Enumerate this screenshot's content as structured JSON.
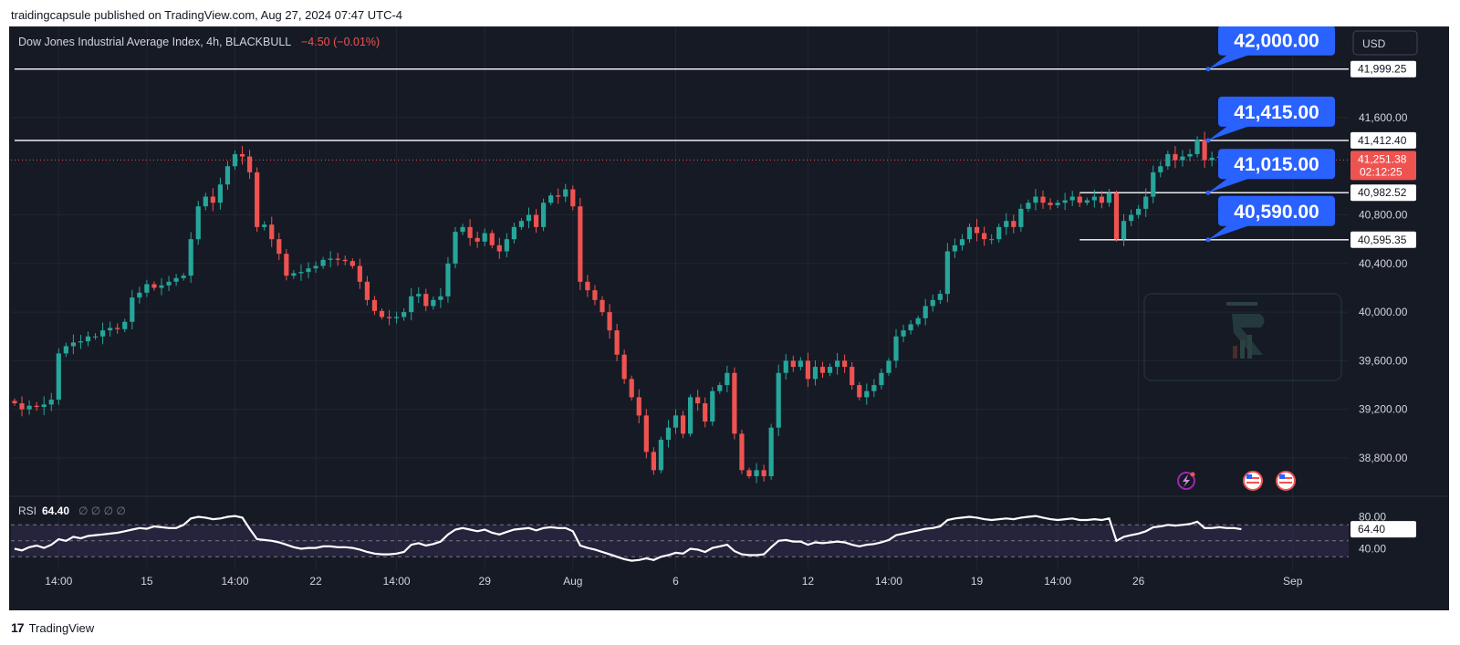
{
  "header": {
    "text": "traidingcapsule published on TradingView.com, Aug 27, 2024 07:47 UTC-4"
  },
  "legend": {
    "symbol": "Dow Jones Industrial Average Index, 4h, BLACKBULL",
    "change": "−4.50 (−0.01%)"
  },
  "currency_button": "USD",
  "footer": {
    "logo": "17",
    "brand": "TradingView"
  },
  "colors": {
    "up": "#26a69a",
    "down": "#ef5350",
    "callout": "#2962ff",
    "rsi_line": "#ffffff",
    "rsi_band": "#3a2e5a",
    "panel": "#161a25"
  },
  "icons": [
    "lightning-icon",
    "us-flag-icon",
    "us-flag-icon"
  ],
  "chart_data": {
    "type": "candlestick",
    "interval": "4h",
    "ylim": [
      38500,
      42350
    ],
    "y_ticks": [
      "41,600.00",
      "40,800.00",
      "40,400.00",
      "40,000.00",
      "39,600.00",
      "39,200.00",
      "38,800.00"
    ],
    "y_tick_values": [
      41600,
      40800,
      40400,
      40000,
      39600,
      39200,
      38800
    ],
    "x_ticks": [
      {
        "label": "14:00",
        "i": 6
      },
      {
        "label": "15",
        "i": 18
      },
      {
        "label": "14:00",
        "i": 30
      },
      {
        "label": "22",
        "i": 41
      },
      {
        "label": "14:00",
        "i": 52
      },
      {
        "label": "29",
        "i": 64
      },
      {
        "label": "Aug",
        "i": 76
      },
      {
        "label": "6",
        "i": 90
      },
      {
        "label": "12",
        "i": 108
      },
      {
        "label": "14:00",
        "i": 119
      },
      {
        "label": "19",
        "i": 131
      },
      {
        "label": "14:00",
        "i": 142
      },
      {
        "label": "26",
        "i": 153
      },
      {
        "label": "Sep",
        "i": 174
      }
    ],
    "levels": [
      {
        "value": 41999.25,
        "price_label": "41,999.25",
        "callout": "42,000.00",
        "start_i": 0
      },
      {
        "value": 41412.4,
        "price_label": "41,412.40",
        "callout": "41,415.00",
        "start_i": 0
      },
      {
        "value": 40982.52,
        "price_label": "40,982.52",
        "callout": "41,015.00",
        "start_i": 145
      },
      {
        "value": 40595.35,
        "price_label": "40,595.35",
        "callout": "40,590.00",
        "start_i": 145
      }
    ],
    "current_price": {
      "value": 41251.38,
      "label": "41,251.38",
      "countdown": "02:12:25"
    },
    "closes": [
      39250,
      39200,
      39230,
      39220,
      39240,
      39280,
      39660,
      39720,
      39750,
      39760,
      39800,
      39800,
      39850,
      39870,
      39860,
      39920,
      40120,
      40160,
      40230,
      40200,
      40220,
      40250,
      40280,
      40300,
      40600,
      40870,
      40950,
      40900,
      41050,
      41200,
      41300,
      41280,
      41150,
      40700,
      40720,
      40600,
      40480,
      40300,
      40320,
      40330,
      40360,
      40380,
      40430,
      40440,
      40430,
      40420,
      40380,
      40250,
      40100,
      40010,
      39960,
      39950,
      39960,
      40000,
      40130,
      40150,
      40050,
      40100,
      40130,
      40400,
      40660,
      40700,
      40610,
      40580,
      40650,
      40550,
      40500,
      40600,
      40700,
      40750,
      40800,
      40700,
      40900,
      40960,
      40950,
      41010,
      40870,
      40250,
      40180,
      40100,
      40000,
      39850,
      39650,
      39450,
      39300,
      39150,
      38850,
      38700,
      38950,
      39050,
      39150,
      39000,
      39300,
      39250,
      39100,
      39350,
      39400,
      39500,
      39000,
      38700,
      38650,
      38700,
      38650,
      39050,
      39500,
      39600,
      39550,
      39600,
      39450,
      39550,
      39500,
      39550,
      39600,
      39550,
      39400,
      39300,
      39350,
      39400,
      39500,
      39600,
      39800,
      39850,
      39900,
      39950,
      40050,
      40100,
      40150,
      40500,
      40550,
      40600,
      40700,
      40650,
      40600,
      40600,
      40700,
      40750,
      40700,
      40850,
      40900,
      40950,
      40900,
      40880,
      40900,
      40920,
      40950,
      40900,
      40920,
      40950,
      40900,
      40980,
      40600,
      40750,
      40800,
      40850,
      40950,
      41150,
      41200,
      41300,
      41250,
      41280,
      41300,
      41420,
      41250,
      41270,
      41280,
      41260,
      41280,
      41251
    ],
    "rsi": {
      "label": "RSI",
      "value": "64.40",
      "extra": "∅ ∅ ∅ ∅",
      "ticks": [
        "80.00",
        "40.00"
      ],
      "tick_values": [
        80,
        40
      ],
      "band": [
        70,
        30
      ],
      "current_label": "64.40",
      "values": [
        40,
        38,
        42,
        44,
        41,
        45,
        52,
        50,
        55,
        53,
        56,
        57,
        58,
        59,
        60,
        62,
        64,
        66,
        65,
        68,
        67,
        66,
        66,
        70,
        78,
        80,
        79,
        77,
        78,
        80,
        81,
        79,
        65,
        52,
        51,
        50,
        48,
        45,
        42,
        40,
        41,
        41,
        43,
        43,
        42,
        42,
        41,
        39,
        36,
        34,
        33,
        33,
        34,
        36,
        45,
        47,
        44,
        46,
        49,
        58,
        64,
        66,
        64,
        62,
        64,
        60,
        58,
        61,
        64,
        65,
        66,
        63,
        66,
        67,
        66,
        66,
        62,
        44,
        41,
        39,
        36,
        33,
        30,
        27,
        25,
        26,
        28,
        26,
        30,
        32,
        35,
        34,
        40,
        39,
        36,
        41,
        43,
        45,
        37,
        33,
        32,
        32,
        33,
        42,
        50,
        51,
        49,
        49,
        45,
        48,
        47,
        48,
        49,
        48,
        45,
        43,
        45,
        46,
        48,
        51,
        57,
        59,
        61,
        63,
        65,
        66,
        68,
        76,
        78,
        79,
        80,
        79,
        77,
        76,
        77,
        78,
        77,
        79,
        80,
        81,
        79,
        77,
        76,
        77,
        78,
        76,
        76,
        77,
        76,
        78,
        50,
        55,
        57,
        59,
        62,
        67,
        68,
        70,
        69,
        70,
        71,
        74,
        66,
        66,
        67,
        66,
        66,
        64.4
      ]
    }
  }
}
